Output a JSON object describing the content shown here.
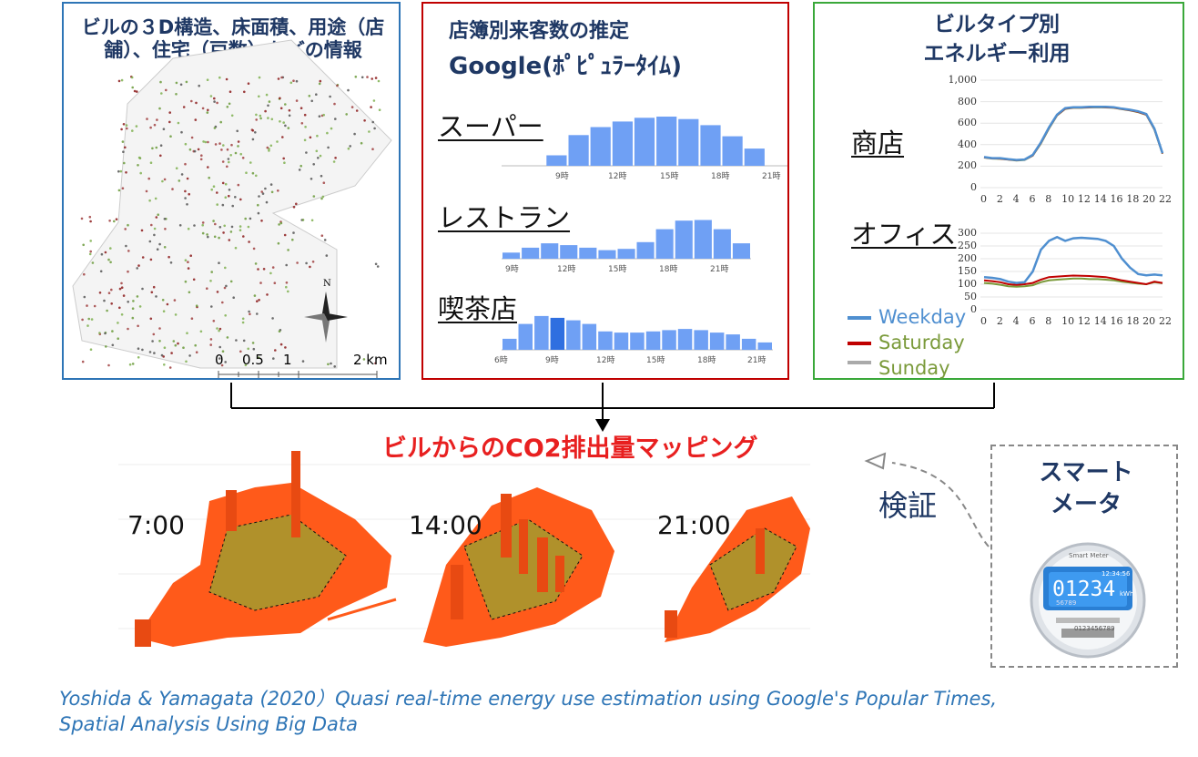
{
  "panels": {
    "building": {
      "title": "ビルの３D構造、床面積、用途（店舗）、住宅（戸数）などの情報",
      "compass": "N",
      "scale": [
        "0",
        "0.5",
        "1",
        "2 km"
      ]
    },
    "popular_times": {
      "title_line1": "店簿別来客数の推定",
      "title_line2": "Google(ﾎﾟﾋﾟｭﾗｰﾀｲﾑ)",
      "charts": [
        {
          "label": "スーパー",
          "ticks": [
            "9時",
            "12時",
            "15時",
            "18時",
            "21時"
          ]
        },
        {
          "label": "レストラン",
          "ticks": [
            "9時",
            "12時",
            "15時",
            "18時",
            "21時"
          ]
        },
        {
          "label": "喫茶店",
          "ticks": [
            "6時",
            "9時",
            "12時",
            "15時",
            "18時",
            "21時"
          ]
        }
      ]
    },
    "energy": {
      "title_line1": "ビルタイプ別",
      "title_line2": "エネルギー利用",
      "shop_label": "商店",
      "office_label": "オフィス",
      "legend": [
        "Weekday",
        "Saturday",
        "Sunday"
      ],
      "colors": {
        "weekday": "#4f8fd0",
        "saturday": "#c00000",
        "sunday": "#7a9a3a"
      }
    }
  },
  "chart_data": [
    {
      "type": "bar",
      "name": "スーパー",
      "categories": [
        "9",
        "10",
        "11",
        "12",
        "13",
        "14",
        "15",
        "16",
        "17",
        "18",
        "19",
        "20",
        "21"
      ],
      "values": [
        0,
        0,
        17,
        50,
        63,
        72,
        78,
        80,
        76,
        66,
        48,
        28,
        0
      ]
    },
    {
      "type": "bar",
      "name": "レストラン",
      "categories": [
        "10",
        "11",
        "12",
        "13",
        "14",
        "15",
        "16",
        "17",
        "18",
        "19",
        "20",
        "21",
        "22"
      ],
      "values": [
        10,
        18,
        25,
        22,
        18,
        14,
        16,
        27,
        48,
        62,
        63,
        48,
        25
      ]
    },
    {
      "type": "bar",
      "name": "喫茶店",
      "categories": [
        "6",
        "7",
        "8",
        "9",
        "10",
        "11",
        "12",
        "13",
        "14",
        "15",
        "16",
        "17",
        "18",
        "19",
        "20",
        "21",
        "22"
      ],
      "values": [
        18,
        42,
        55,
        52,
        48,
        42,
        30,
        28,
        28,
        30,
        32,
        34,
        32,
        28,
        25,
        18,
        12
      ]
    },
    {
      "type": "line",
      "name": "商店",
      "x": [
        0,
        1,
        2,
        3,
        4,
        5,
        6,
        7,
        8,
        9,
        10,
        11,
        12,
        13,
        14,
        15,
        16,
        17,
        18,
        19,
        20,
        21,
        22
      ],
      "ylim": [
        0,
        1000
      ],
      "yticks": [
        "0",
        "200",
        "400",
        "600",
        "800",
        "1,000"
      ],
      "xticks": [
        "0",
        "2",
        "4",
        "6",
        "8",
        "10",
        "12",
        "14",
        "16",
        "18",
        "20",
        "22"
      ],
      "series": [
        {
          "name": "Weekday",
          "values": [
            285,
            275,
            275,
            265,
            258,
            262,
            305,
            420,
            560,
            680,
            740,
            748,
            748,
            752,
            752,
            752,
            748,
            735,
            725,
            710,
            685,
            550,
            320
          ]
        },
        {
          "name": "Saturday",
          "values": [
            282,
            272,
            270,
            262,
            255,
            260,
            300,
            415,
            555,
            675,
            735,
            745,
            745,
            748,
            750,
            748,
            745,
            732,
            720,
            705,
            680,
            545,
            318
          ]
        },
        {
          "name": "Sunday",
          "values": [
            280,
            270,
            268,
            260,
            252,
            258,
            298,
            410,
            550,
            672,
            732,
            742,
            742,
            746,
            748,
            746,
            742,
            730,
            718,
            702,
            678,
            540,
            315
          ]
        }
      ]
    },
    {
      "type": "line",
      "name": "オフィス",
      "x": [
        0,
        1,
        2,
        3,
        4,
        5,
        6,
        7,
        8,
        9,
        10,
        11,
        12,
        13,
        14,
        15,
        16,
        17,
        18,
        19,
        20,
        21,
        22
      ],
      "ylim": [
        0,
        300
      ],
      "yticks": [
        "0",
        "50",
        "100",
        "150",
        "200",
        "250",
        "300"
      ],
      "xticks": [
        "0",
        "2",
        "4",
        "6",
        "8",
        "10",
        "12",
        "14",
        "16",
        "18",
        "20",
        "22"
      ],
      "series": [
        {
          "name": "Weekday",
          "values": [
            128,
            125,
            120,
            110,
            105,
            108,
            150,
            235,
            270,
            285,
            270,
            280,
            282,
            280,
            278,
            270,
            250,
            200,
            165,
            140,
            135,
            138,
            135
          ]
        },
        {
          "name": "Saturday",
          "values": [
            115,
            112,
            108,
            100,
            97,
            100,
            105,
            118,
            128,
            130,
            132,
            134,
            133,
            132,
            130,
            128,
            122,
            115,
            110,
            105,
            100,
            110,
            105
          ]
        },
        {
          "name": "Sunday",
          "values": [
            105,
            102,
            98,
            92,
            90,
            92,
            96,
            108,
            115,
            118,
            120,
            122,
            122,
            120,
            120,
            118,
            115,
            110,
            106,
            102,
            100,
            108,
            104
          ]
        }
      ]
    }
  ],
  "mapping": {
    "title": "ビルからのCO2排出量マッピング",
    "times": [
      "7:00",
      "14:00",
      "21:00"
    ],
    "verify": "検証",
    "smart_meter_title": "スマートメータ",
    "meter_brand": "Smart Meter",
    "meter_time": "12:34:56",
    "meter_reading": "01234",
    "meter_unit": "kWh",
    "meter_small": "56789",
    "meter_serial": "0123456789"
  },
  "citation": {
    "line1": "Yoshida & Yamagata (2020）Quasi real-time energy use estimation using Google's Popular Times,",
    "line2": "Spatial Analysis Using Big Data"
  }
}
